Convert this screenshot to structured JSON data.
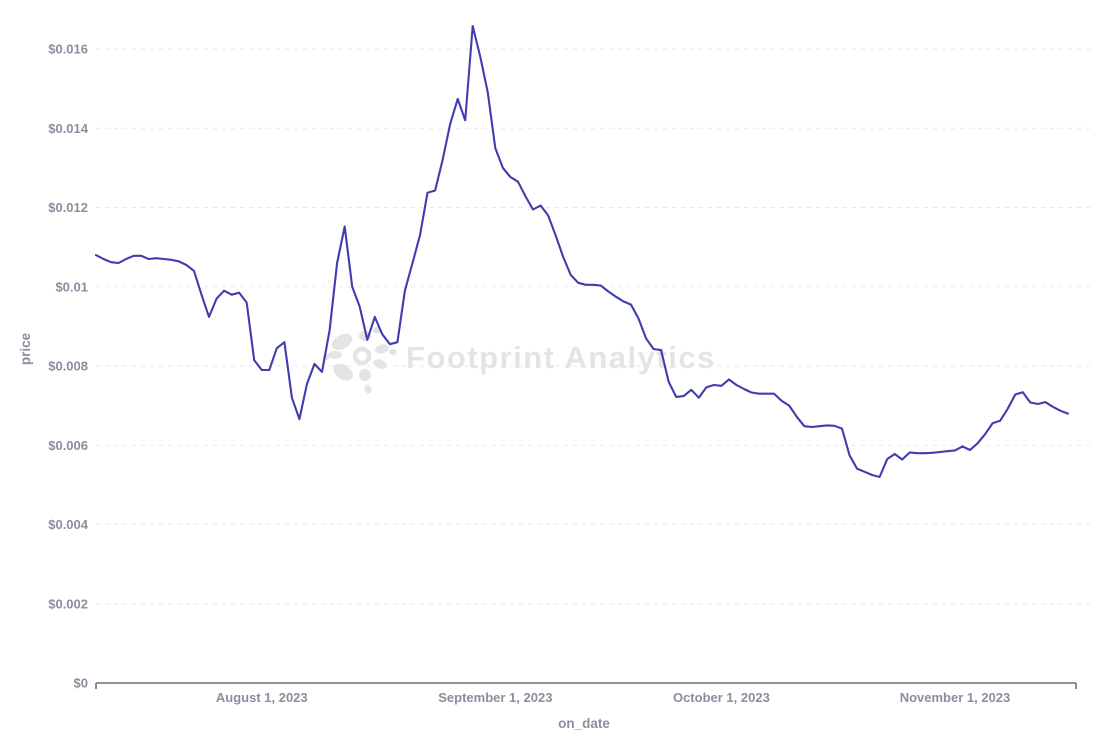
{
  "watermark": {
    "text": "Footprint Analytics",
    "logo": "footprint-flower-icon",
    "color": "#e4e4e7"
  },
  "colors": {
    "series_line": "#403dae",
    "axis_line": "#71717c",
    "gridline": "#e9e9f0",
    "tick_label": "#8a8e9e",
    "background": "#ffffff"
  },
  "chart_data": {
    "type": "line",
    "title": "",
    "xlabel": "on_date",
    "ylabel": "price",
    "legend": "none",
    "grid": "horizontal-dashed",
    "x_range": "2023-07-10 to 2023-11-16 (daily)",
    "ylim": [
      0,
      0.016
    ],
    "y_ticks": [
      {
        "value": 0.0,
        "label": "$0"
      },
      {
        "value": 0.002,
        "label": "$0.002"
      },
      {
        "value": 0.004,
        "label": "$0.004"
      },
      {
        "value": 0.006,
        "label": "$0.006"
      },
      {
        "value": 0.008,
        "label": "$0.008"
      },
      {
        "value": 0.01,
        "label": "$0.01"
      },
      {
        "value": 0.012,
        "label": "$0.012"
      },
      {
        "value": 0.014,
        "label": "$0.014"
      },
      {
        "value": 0.016,
        "label": "$0.016"
      }
    ],
    "x_ticks": [
      {
        "index": 22,
        "label": "August 1, 2023"
      },
      {
        "index": 53,
        "label": "September 1, 2023"
      },
      {
        "index": 83,
        "label": "October 1, 2023"
      },
      {
        "index": 114,
        "label": "November 1, 2023"
      }
    ],
    "series_name": "price",
    "values": [
      0.0108,
      0.0107,
      0.01062,
      0.0106,
      0.0107,
      0.01078,
      0.01078,
      0.0107,
      0.01072,
      0.0107,
      0.01068,
      0.01064,
      0.01055,
      0.0104,
      0.0098,
      0.00924,
      0.0097,
      0.0099,
      0.0098,
      0.00985,
      0.0096,
      0.00815,
      0.0079,
      0.0079,
      0.00845,
      0.0086,
      0.0072,
      0.00666,
      0.00755,
      0.00805,
      0.00785,
      0.0089,
      0.0106,
      0.01152,
      0.01,
      0.0095,
      0.00866,
      0.00924,
      0.0088,
      0.00855,
      0.0086,
      0.0099,
      0.0106,
      0.0113,
      0.01237,
      0.01243,
      0.0132,
      0.0141,
      0.01474,
      0.0142,
      0.01658,
      0.0158,
      0.0149,
      0.0135,
      0.013,
      0.01277,
      0.01265,
      0.01228,
      0.01195,
      0.01205,
      0.0118,
      0.0113,
      0.01075,
      0.0103,
      0.0101,
      0.01005,
      0.01005,
      0.01003,
      0.00988,
      0.00975,
      0.00963,
      0.00955,
      0.0092,
      0.0087,
      0.00843,
      0.0084,
      0.0076,
      0.00722,
      0.00724,
      0.0074,
      0.0072,
      0.00746,
      0.00752,
      0.0075,
      0.00766,
      0.00752,
      0.00742,
      0.00733,
      0.0073,
      0.0073,
      0.0073,
      0.00712,
      0.007,
      0.00672,
      0.00648,
      0.00646,
      0.00648,
      0.0065,
      0.00649,
      0.00642,
      0.00575,
      0.00541,
      0.00533,
      0.00525,
      0.0052,
      0.00565,
      0.00578,
      0.00564,
      0.00582,
      0.0058,
      0.0058,
      0.00581,
      0.00583,
      0.00585,
      0.00587,
      0.00597,
      0.00588,
      0.00605,
      0.00628,
      0.00656,
      0.00662,
      0.00692,
      0.00728,
      0.00734,
      0.00708,
      0.00704,
      0.00709,
      0.00697,
      0.00687,
      0.0068
    ]
  }
}
